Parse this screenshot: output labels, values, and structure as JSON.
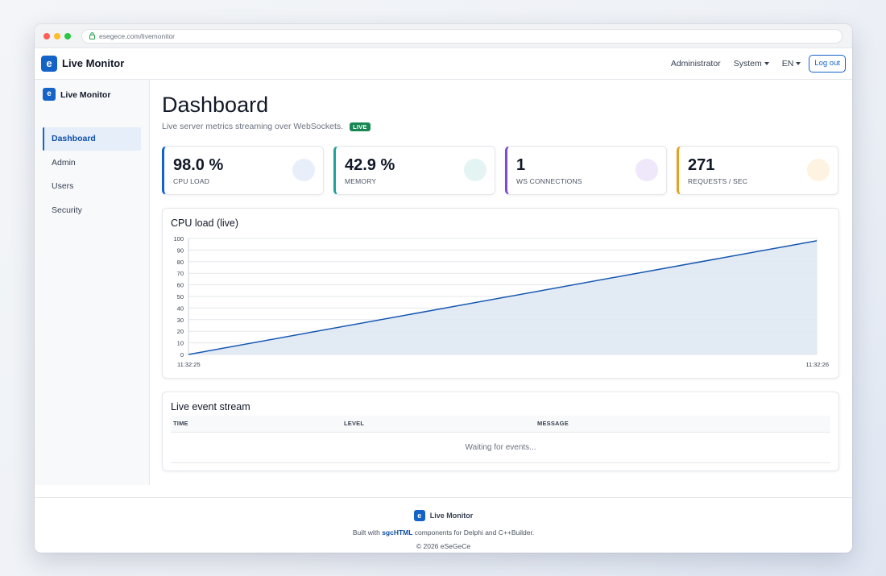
{
  "browser": {
    "url": "esegece.com/livemonitor"
  },
  "topnav": {
    "logo_letter": "e",
    "brand": "Live Monitor",
    "user": "Administrator",
    "system_menu": "System",
    "language": "EN",
    "logout": "Log out"
  },
  "sidebar": {
    "logo_letter": "e",
    "brand": "Live Monitor",
    "items": [
      {
        "label": "Dashboard",
        "active": true
      },
      {
        "label": "Admin"
      },
      {
        "label": "Users"
      },
      {
        "label": "Security"
      }
    ]
  },
  "page": {
    "title": "Dashboard",
    "subtitle": "Live server metrics streaming over WebSockets.",
    "badge": "LIVE"
  },
  "stats": [
    {
      "value": "98.0 %",
      "label": "CPU LOAD",
      "accent": "#1464c8",
      "circle": "#e8effa"
    },
    {
      "value": "42.9 %",
      "label": "MEMORY",
      "accent": "#20a39a",
      "circle": "#e3f4f3"
    },
    {
      "value": "1",
      "label": "WS CONNECTIONS",
      "accent": "#7c4dce",
      "circle": "#efe8fb"
    },
    {
      "value": "271",
      "label": "REQUESTS / SEC",
      "accent": "#e6a21f",
      "circle": "#fdf3e0"
    }
  ],
  "chart": {
    "title": "CPU load (live)",
    "chart_data": {
      "type": "area",
      "x": [
        "11:32:25",
        "11:32:26"
      ],
      "values": [
        0,
        98
      ],
      "ylim": [
        0,
        100
      ],
      "yticks": [
        0,
        10,
        20,
        30,
        40,
        50,
        60,
        70,
        80,
        90,
        100
      ],
      "grid": true,
      "line_color": "#1557b0",
      "fill_color": "#dfe8f3"
    }
  },
  "events": {
    "title": "Live event stream",
    "columns": [
      "TIME",
      "LEVEL",
      "MESSAGE"
    ],
    "empty": "Waiting for events..."
  },
  "footer": {
    "logo_letter": "e",
    "brand": "Live Monitor",
    "built_prefix": "Built with ",
    "built_link": "sgcHTML",
    "built_suffix": " components for Delphi and C++Builder.",
    "copyright": "© 2026 eSeGeCe"
  }
}
